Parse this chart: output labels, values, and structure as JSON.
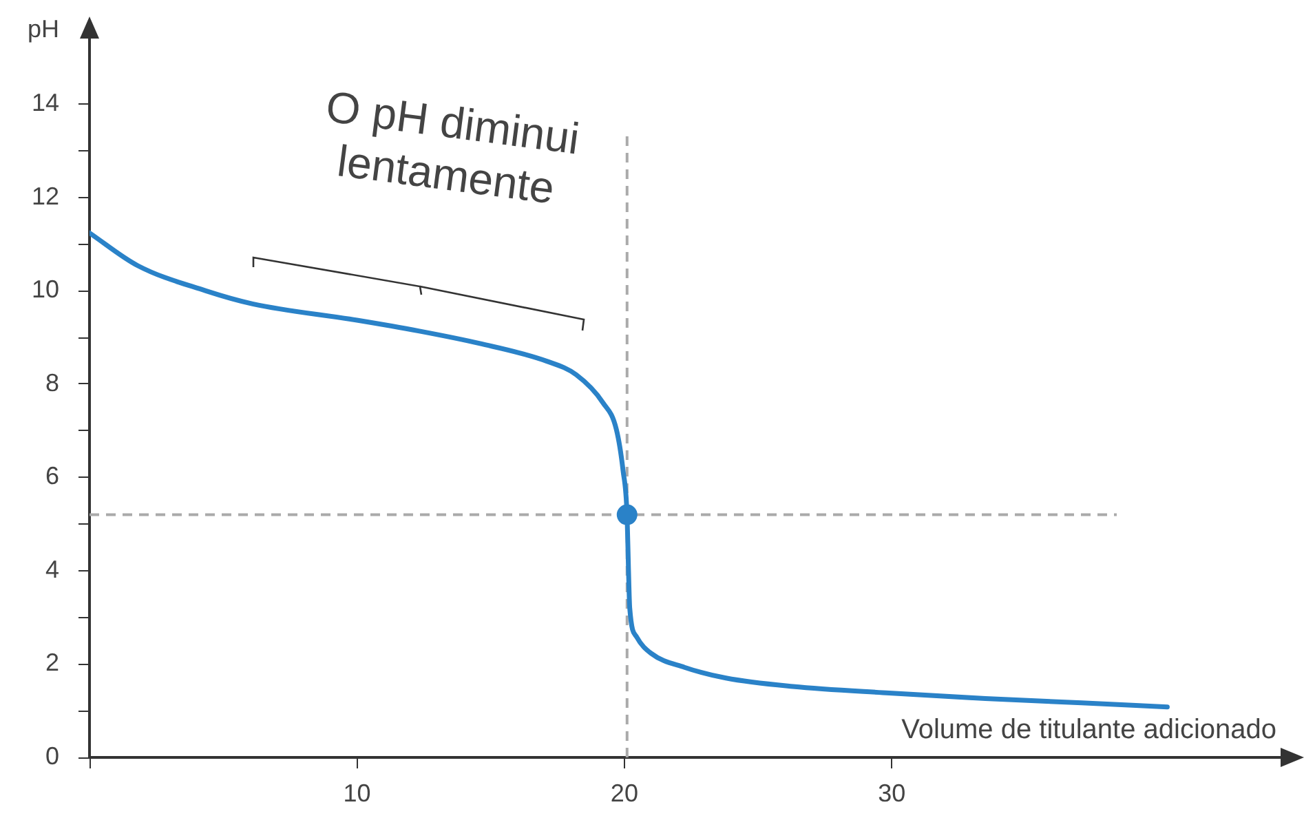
{
  "chart_data": {
    "type": "line",
    "xlabel": "Volume de titulante adicionado",
    "ylabel": "pH",
    "xlim": [
      0,
      45
    ],
    "ylim": [
      0,
      15.5
    ],
    "xticks": [
      {
        "value": 0,
        "label": null
      },
      10,
      20,
      30
    ],
    "yticks": [
      {
        "value": 0,
        "label": "0"
      },
      {
        "value": 1,
        "label": null
      },
      2,
      {
        "value": 3,
        "label": null
      },
      4,
      {
        "value": 5,
        "label": null
      },
      6,
      {
        "value": 7,
        "label": null
      },
      8,
      {
        "value": 9,
        "label": null
      },
      10,
      {
        "value": 11,
        "label": null
      },
      12,
      {
        "value": 13,
        "label": null
      },
      14
    ],
    "grid": false,
    "legend": false,
    "line_style": "solid",
    "marker": "none",
    "series": [
      {
        "color": "#2a82c8",
        "x": [
          0,
          1.8,
          4.35,
          6.1,
          10,
          12.3,
          14.6,
          17.1,
          18.2,
          19.2,
          19.7,
          19.95,
          20.1,
          20.15,
          20.2,
          20.46,
          21,
          22.25,
          23.8,
          26.3,
          29.9,
          33.5,
          37.1,
          40.3
        ],
        "values": [
          11.24,
          10.54,
          10.0,
          9.72,
          9.37,
          9.14,
          8.87,
          8.49,
          8.2,
          7.6,
          7.03,
          6.15,
          5.2,
          4.1,
          3.2,
          2.58,
          2.23,
          1.93,
          1.7,
          1.52,
          1.38,
          1.26,
          1.17,
          1.08
        ]
      },
      {
        "type": "scatter",
        "color": "#2a82c8",
        "marker": "circle",
        "x": [
          20.1
        ],
        "values": [
          5.2
        ]
      }
    ],
    "ref_lines": [
      {
        "axis": "x",
        "value": 20.1,
        "color": "#aaaaaa",
        "line_style": "dashed"
      },
      {
        "axis": "y",
        "value": 5.2,
        "color": "#aaaaaa",
        "line_style": "dashed"
      }
    ],
    "annotations": [
      "O pH diminui lentamente"
    ]
  }
}
